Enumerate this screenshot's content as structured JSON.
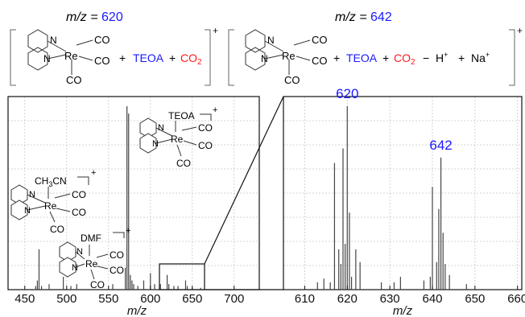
{
  "header": {
    "left": {
      "mz_label": "m/z = ",
      "mz_value": "620",
      "ligands": [
        "CO",
        "CO",
        "CO"
      ],
      "metal": "Re",
      "n_labels": [
        "N",
        "N"
      ],
      "plus1": "+",
      "teoa": "TEOA",
      "plus2": "+",
      "co2": "CO",
      "co2_sub": "2",
      "charge": "+"
    },
    "right": {
      "mz_label": "m/z = ",
      "mz_value": "642",
      "ligands": [
        "CO",
        "CO",
        "CO"
      ],
      "metal": "Re",
      "n_labels": [
        "N",
        "N"
      ],
      "plus1": "+",
      "teoa": "TEOA",
      "plus2": "+",
      "co2": "CO",
      "co2_sub": "2",
      "minus": "−",
      "h": "H",
      "h_charge": "+",
      "plus3": "+",
      "na": "Na",
      "na_charge": "+",
      "charge": "+"
    }
  },
  "structures": {
    "teoa": {
      "ligand": "TEOA",
      "metal": "Re",
      "co": [
        "CO",
        "CO",
        "CO"
      ],
      "n": [
        "N",
        "N"
      ],
      "charge": "+"
    },
    "ch3cn": {
      "ligand_a": "CH",
      "ligand_sub": "3",
      "ligand_b": "CN",
      "metal": "Re",
      "co": [
        "CO",
        "CO",
        "CO"
      ],
      "n": [
        "N",
        "N"
      ],
      "charge": "+"
    },
    "dmf": {
      "ligand": "DMF",
      "metal": "Re",
      "co": [
        "CO",
        "CO",
        "CO"
      ],
      "n": [
        "N",
        "N"
      ],
      "charge": "+"
    }
  },
  "colors": {
    "blue": "#1a1aff",
    "red": "#ff1a1a"
  },
  "chart_data": [
    {
      "type": "bar",
      "xlabel": "m/z",
      "xlim": [
        430,
        730
      ],
      "ylim": [
        0,
        100
      ],
      "xticks": [
        450,
        500,
        550,
        600,
        650,
        700
      ],
      "grid": true,
      "x": [
        463,
        465,
        467,
        470,
        479,
        496,
        505,
        512,
        555,
        570,
        572,
        574,
        576,
        578,
        580,
        585,
        592,
        600,
        605,
        612,
        620,
        622,
        628,
        633,
        642,
        644,
        650,
        660
      ],
      "values": [
        2,
        5,
        22,
        2,
        3,
        7,
        2,
        3,
        3,
        12,
        100,
        96,
        8,
        5,
        3,
        2,
        5,
        9,
        3,
        3,
        8,
        3,
        2,
        2,
        5,
        2,
        1,
        1
      ]
    },
    {
      "type": "bar",
      "xlabel": "m/z",
      "xlim": [
        605,
        661
      ],
      "ylim": [
        0,
        100
      ],
      "xticks": [
        610,
        620,
        630,
        640,
        650,
        660
      ],
      "grid": true,
      "annotations": [
        "620",
        "642"
      ],
      "x": [
        613.0,
        614.5,
        616.0,
        617.0,
        618.0,
        618.5,
        619.0,
        619.5,
        620.0,
        620.5,
        621.0,
        622.0,
        623.0,
        628.0,
        631.0,
        632.5,
        638.0,
        639.5,
        640.0,
        641.0,
        641.5,
        642.0,
        642.5,
        643.0,
        644.0,
        648.0
      ],
      "values": [
        4,
        6,
        4,
        69,
        22,
        14,
        77,
        25,
        100,
        42,
        7,
        22,
        15,
        4,
        4,
        7,
        5,
        7,
        56,
        15,
        44,
        72,
        31,
        14,
        8,
        3
      ]
    }
  ]
}
